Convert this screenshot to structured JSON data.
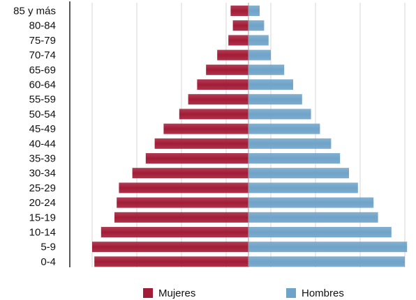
{
  "chart_data": {
    "type": "bar",
    "orientation": "horizontal",
    "subtype": "population-pyramid",
    "categories": [
      "85 y más",
      "80-84",
      "75-79",
      "70-74",
      "65-69",
      "60-64",
      "55-59",
      "50-54",
      "45-49",
      "40-44",
      "35-39",
      "30-34",
      "25-29",
      "20-24",
      "15-19",
      "10-14",
      "5-9",
      "0-4"
    ],
    "series": [
      {
        "name": "Mujeres",
        "side": "left",
        "color": "#a31c37",
        "values": [
          0.8,
          0.7,
          0.9,
          1.4,
          1.9,
          2.3,
          2.7,
          3.1,
          3.8,
          4.2,
          4.6,
          5.2,
          5.8,
          5.9,
          6.0,
          6.6,
          7.0,
          6.9
        ]
      },
      {
        "name": "Hombres",
        "side": "right",
        "color": "#6fa3c8",
        "values": [
          0.5,
          0.7,
          0.9,
          1.0,
          1.6,
          2.0,
          2.4,
          2.8,
          3.2,
          3.7,
          4.1,
          4.5,
          4.9,
          5.6,
          5.8,
          6.4,
          7.1,
          7.0
        ]
      }
    ],
    "xlim": [
      -7.5,
      7.5
    ],
    "grid": true,
    "legend_position": "bottom"
  }
}
